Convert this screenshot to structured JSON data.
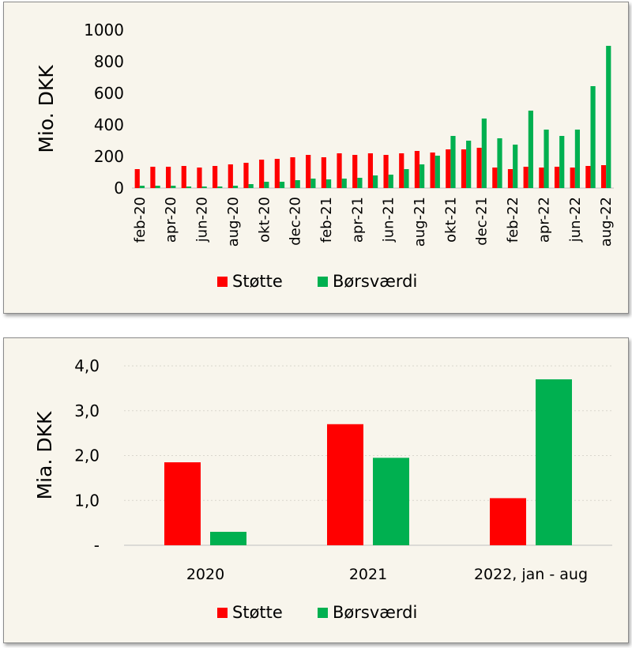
{
  "colors": {
    "stotte": "#ff0000",
    "borsvaerdi": "#00b050",
    "background": "#f8f5ec",
    "axis": "#bfbfbf"
  },
  "chart_data": [
    {
      "type": "bar",
      "ylabel": "Mio. DKK",
      "ylim": [
        0,
        1000
      ],
      "yticks": [
        "0",
        "200",
        "400",
        "600",
        "800",
        "1000"
      ],
      "legend_position": "bottom",
      "categories": [
        "feb-20",
        "mar-20",
        "apr-20",
        "maj-20",
        "jun-20",
        "jul-20",
        "aug-20",
        "sep-20",
        "okt-20",
        "nov-20",
        "dec-20",
        "jan-21",
        "feb-21",
        "mar-21",
        "apr-21",
        "maj-21",
        "jun-21",
        "jul-21",
        "aug-21",
        "sep-21",
        "okt-21",
        "nov-21",
        "dec-21",
        "jan-22",
        "feb-22",
        "mar-22",
        "apr-22",
        "maj-22",
        "jun-22",
        "jul-22",
        "aug-22"
      ],
      "visible_tick_labels": [
        "feb-20",
        "apr-20",
        "jun-20",
        "aug-20",
        "okt-20",
        "dec-20",
        "feb-21",
        "apr-21",
        "jun-21",
        "aug-21",
        "okt-21",
        "dec-21",
        "feb-22",
        "apr-22",
        "jun-22",
        "aug-22"
      ],
      "series": [
        {
          "name": "Støtte",
          "values": [
            120,
            135,
            135,
            140,
            130,
            140,
            150,
            160,
            180,
            185,
            195,
            210,
            195,
            220,
            210,
            220,
            210,
            220,
            235,
            225,
            245,
            245,
            255,
            130,
            120,
            135,
            130,
            135,
            130,
            140,
            145
          ]
        },
        {
          "name": "Børsværdi",
          "values": [
            15,
            15,
            15,
            10,
            10,
            10,
            15,
            25,
            40,
            40,
            50,
            60,
            55,
            60,
            65,
            80,
            85,
            120,
            150,
            205,
            330,
            300,
            440,
            315,
            275,
            490,
            370,
            330,
            370,
            645,
            900
          ]
        }
      ]
    },
    {
      "type": "bar",
      "ylabel": "Mia. DKK",
      "ylim": [
        0,
        4
      ],
      "yticks": [
        "-",
        "1,0",
        "2,0",
        "3,0",
        "4,0"
      ],
      "legend_position": "bottom",
      "categories": [
        "2020",
        "2021",
        "2022, jan - aug"
      ],
      "series": [
        {
          "name": "Støtte",
          "values": [
            1.85,
            2.7,
            1.05
          ]
        },
        {
          "name": "Børsværdi",
          "values": [
            0.3,
            1.95,
            3.7
          ]
        }
      ]
    }
  ]
}
